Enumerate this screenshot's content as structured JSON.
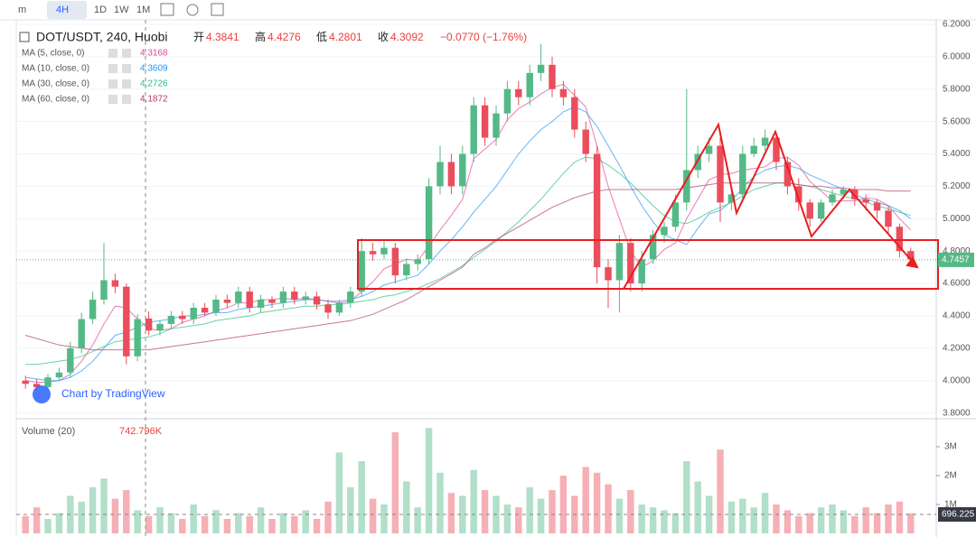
{
  "toolbar": {
    "items": [
      "m",
      "4H",
      "1D",
      "1W",
      "1M"
    ]
  },
  "chart_data": {
    "type": "candlestick",
    "title": "DOT/USDT, 240, Huobi",
    "ohlc_legend": [
      {
        "label": "开",
        "value": "4.3841"
      },
      {
        "label": "高",
        "value": "4.4276"
      },
      {
        "label": "低",
        "value": "4.2801"
      },
      {
        "label": "收",
        "value": "4.3092"
      }
    ],
    "change": "−0.0770 (−1.76%)",
    "up_color": "#53b987",
    "down_color": "#eb4d5c",
    "open": [
      4.0,
      3.98,
      3.96,
      4.02,
      4.05,
      4.2,
      4.38,
      4.5,
      4.62,
      4.58,
      4.15,
      4.3841,
      4.3092,
      4.35,
      4.4,
      4.38,
      4.45,
      4.42,
      4.5,
      4.48,
      4.55,
      4.45,
      4.5,
      4.48,
      4.55,
      4.5,
      4.52,
      4.47,
      4.42,
      4.48,
      4.55,
      4.8,
      4.78,
      4.82,
      4.65,
      4.72,
      4.75,
      5.2,
      5.35,
      5.2,
      5.4,
      5.7,
      5.5,
      5.65,
      5.8,
      5.75,
      5.9,
      5.95,
      5.8,
      5.75,
      5.55,
      5.4,
      4.7,
      4.62,
      4.85,
      4.6,
      4.75,
      4.9,
      4.95,
      5.1,
      5.3,
      5.4,
      5.45,
      5.1,
      5.15,
      5.4,
      5.45,
      5.5,
      5.35,
      5.2,
      5.1,
      5.0,
      5.1,
      5.15,
      5.18,
      5.12,
      5.1,
      5.05,
      4.95,
      4.8
    ],
    "high": [
      4.03,
      4.01,
      4.04,
      4.08,
      4.24,
      4.42,
      4.55,
      4.85,
      4.66,
      4.6,
      4.41,
      4.4276,
      4.37,
      4.43,
      4.43,
      4.48,
      4.48,
      4.53,
      4.53,
      4.58,
      4.58,
      4.53,
      4.52,
      4.58,
      4.58,
      4.55,
      4.55,
      4.5,
      4.5,
      4.58,
      4.88,
      4.85,
      4.86,
      4.85,
      4.75,
      4.78,
      5.25,
      5.45,
      5.4,
      5.45,
      5.75,
      5.75,
      5.7,
      5.85,
      5.85,
      5.95,
      6.08,
      6.0,
      5.85,
      5.8,
      5.6,
      5.45,
      4.75,
      4.9,
      4.88,
      4.8,
      4.93,
      4.98,
      5.15,
      5.8,
      5.45,
      5.5,
      5.5,
      5.2,
      5.45,
      5.5,
      5.55,
      5.52,
      5.38,
      5.25,
      5.12,
      5.12,
      5.18,
      5.2,
      5.2,
      5.15,
      5.12,
      5.08,
      4.97,
      4.82
    ],
    "low": [
      3.95,
      3.94,
      3.94,
      4.0,
      4.02,
      4.17,
      4.35,
      4.47,
      4.54,
      4.1,
      4.12,
      4.2801,
      4.28,
      4.32,
      4.35,
      4.35,
      4.4,
      4.4,
      4.45,
      4.45,
      4.42,
      4.42,
      4.45,
      4.45,
      4.47,
      4.47,
      4.44,
      4.38,
      4.4,
      4.45,
      4.52,
      4.74,
      4.75,
      4.6,
      4.62,
      4.68,
      4.72,
      5.15,
      5.15,
      5.15,
      5.35,
      5.45,
      5.45,
      5.6,
      5.7,
      5.7,
      5.85,
      5.75,
      5.7,
      5.5,
      5.35,
      4.6,
      4.45,
      4.42,
      4.55,
      4.55,
      4.72,
      4.85,
      4.92,
      5.05,
      5.25,
      5.35,
      4.98,
      5.05,
      5.1,
      5.38,
      5.42,
      5.3,
      5.15,
      5.05,
      4.95,
      4.98,
      5.08,
      5.12,
      5.08,
      5.05,
      5.0,
      4.9,
      4.76,
      4.72
    ],
    "close": [
      3.98,
      3.96,
      4.02,
      4.05,
      4.2,
      4.38,
      4.5,
      4.62,
      4.58,
      4.15,
      4.38,
      4.3092,
      4.35,
      4.4,
      4.38,
      4.45,
      4.42,
      4.5,
      4.48,
      4.55,
      4.45,
      4.5,
      4.48,
      4.55,
      4.5,
      4.52,
      4.47,
      4.42,
      4.48,
      4.55,
      4.8,
      4.78,
      4.82,
      4.65,
      4.72,
      4.75,
      5.2,
      5.35,
      5.2,
      5.4,
      5.7,
      5.5,
      5.65,
      5.8,
      5.75,
      5.9,
      5.95,
      5.8,
      5.75,
      5.55,
      5.4,
      4.7,
      4.62,
      4.85,
      4.6,
      4.75,
      4.9,
      4.95,
      5.1,
      5.3,
      5.4,
      5.45,
      5.1,
      5.15,
      5.4,
      5.45,
      5.5,
      5.35,
      5.2,
      5.1,
      5.0,
      5.1,
      5.15,
      5.18,
      5.12,
      5.1,
      5.05,
      4.95,
      4.8,
      4.75
    ],
    "ylim": [
      3.77,
      6.25
    ],
    "yticks": [
      {
        "value": 6.2,
        "label": "6.2000"
      },
      {
        "value": 6.0,
        "label": "6.0000"
      },
      {
        "value": 5.8,
        "label": "5.8000"
      },
      {
        "value": 5.6,
        "label": "5.6000"
      },
      {
        "value": 5.4,
        "label": "5.4000"
      },
      {
        "value": 5.2,
        "label": "5.2000"
      },
      {
        "value": 5.0,
        "label": "5.0000"
      },
      {
        "value": 4.8,
        "label": "4.8000"
      },
      {
        "value": 4.6,
        "label": "4.6000"
      },
      {
        "value": 4.4,
        "label": "4.4000"
      },
      {
        "value": 4.2,
        "label": "4.2000"
      },
      {
        "value": 4.0,
        "label": "4.0000"
      },
      {
        "value": 3.8,
        "label": "3.8000"
      }
    ],
    "last_price": {
      "value": 4.7457,
      "label": "4.7457"
    },
    "series": [
      {
        "name": "MA (5, close, 0)",
        "legend_value": "4.3168",
        "color": "#e0459a",
        "values": [
          4.0,
          3.99,
          3.99,
          4.0,
          4.04,
          4.12,
          4.22,
          4.35,
          4.46,
          4.45,
          4.38,
          4.32,
          4.31,
          4.32,
          4.36,
          4.38,
          4.4,
          4.43,
          4.45,
          4.48,
          4.48,
          4.5,
          4.5,
          4.51,
          4.5,
          4.51,
          4.5,
          4.49,
          4.48,
          4.49,
          4.55,
          4.61,
          4.69,
          4.72,
          4.75,
          4.74,
          4.83,
          4.93,
          5.02,
          5.12,
          5.37,
          5.43,
          5.49,
          5.61,
          5.68,
          5.72,
          5.77,
          5.81,
          5.83,
          5.76,
          5.69,
          5.45,
          5.2,
          5.0,
          4.8,
          4.7,
          4.74,
          4.81,
          4.85,
          5.0,
          5.12,
          5.24,
          5.27,
          5.28,
          5.3,
          5.31,
          5.32,
          5.37,
          5.38,
          5.33,
          5.23,
          5.17,
          5.11,
          5.11,
          5.11,
          5.13,
          5.12,
          5.08,
          5.0,
          4.93
        ]
      },
      {
        "name": "MA (10, close, 0)",
        "legend_value": "4.3609",
        "color": "#2196f3",
        "values": [
          4.02,
          4.01,
          4.0,
          4.0,
          4.02,
          4.06,
          4.12,
          4.2,
          4.28,
          4.3,
          4.33,
          4.36,
          4.37,
          4.38,
          4.4,
          4.4,
          4.41,
          4.42,
          4.42,
          4.44,
          4.45,
          4.46,
          4.47,
          4.48,
          4.49,
          4.5,
          4.5,
          4.49,
          4.49,
          4.5,
          4.52,
          4.55,
          4.59,
          4.61,
          4.63,
          4.65,
          4.72,
          4.8,
          4.87,
          4.95,
          5.04,
          5.12,
          5.2,
          5.3,
          5.4,
          5.48,
          5.55,
          5.6,
          5.66,
          5.69,
          5.66,
          5.57,
          5.45,
          5.33,
          5.2,
          5.08,
          4.98,
          4.9,
          4.87,
          4.84,
          4.94,
          5.03,
          5.05,
          5.11,
          5.19,
          5.26,
          5.3,
          5.32,
          5.33,
          5.31,
          5.27,
          5.24,
          5.21,
          5.18,
          5.15,
          5.12,
          5.1,
          5.08,
          5.05,
          5.0
        ]
      },
      {
        "name": "MA (30, close, 0)",
        "legend_value": "4.2726",
        "color": "#26c281",
        "values": [
          4.1,
          4.1,
          4.11,
          4.12,
          4.13,
          4.15,
          4.18,
          4.21,
          4.24,
          4.25,
          4.26,
          4.27,
          4.29,
          4.32,
          4.33,
          4.34,
          4.35,
          4.37,
          4.38,
          4.39,
          4.4,
          4.42,
          4.43,
          4.44,
          4.45,
          4.46,
          4.46,
          4.47,
          4.47,
          4.48,
          4.49,
          4.5,
          4.52,
          4.53,
          4.55,
          4.57,
          4.6,
          4.63,
          4.67,
          4.71,
          4.76,
          4.81,
          4.86,
          4.92,
          4.98,
          5.05,
          5.12,
          5.2,
          5.28,
          5.35,
          5.38,
          5.37,
          5.33,
          5.28,
          5.22,
          5.15,
          5.08,
          5.02,
          4.98,
          4.97,
          5.0,
          5.04,
          5.07,
          5.1,
          5.14,
          5.18,
          5.2,
          5.22,
          5.22,
          5.21,
          5.2,
          5.18,
          5.16,
          5.14,
          5.12,
          5.1,
          5.08,
          5.06,
          5.04,
          5.02
        ]
      },
      {
        "name": "MA (60, close, 0)",
        "legend_value": "4.1872",
        "color": "#b03a6e",
        "values": [
          4.28,
          4.26,
          4.24,
          4.22,
          4.21,
          4.2,
          4.19,
          4.19,
          4.19,
          4.19,
          4.19,
          4.19,
          4.2,
          4.21,
          4.22,
          4.23,
          4.24,
          4.25,
          4.26,
          4.27,
          4.28,
          4.29,
          4.3,
          4.31,
          4.32,
          4.33,
          4.34,
          4.35,
          4.36,
          4.37,
          4.39,
          4.41,
          4.44,
          4.47,
          4.5,
          4.54,
          4.58,
          4.62,
          4.66,
          4.7,
          4.78,
          4.82,
          4.87,
          4.91,
          4.95,
          4.99,
          5.03,
          5.07,
          5.1,
          5.13,
          5.15,
          5.17,
          5.18,
          5.18,
          5.18,
          5.18,
          5.18,
          5.18,
          5.18,
          5.19,
          5.2,
          5.21,
          5.22,
          5.22,
          5.22,
          5.22,
          5.22,
          5.22,
          5.22,
          5.21,
          5.2,
          5.2,
          5.19,
          5.19,
          5.18,
          5.18,
          5.18,
          5.17,
          5.17,
          5.17
        ]
      }
    ],
    "volume": {
      "name": "Volume (20)",
      "legend_value": "742.796K",
      "badge": "696.225",
      "values": [
        600000,
        900000,
        500000,
        700000,
        1300000,
        1100000,
        1600000,
        1900000,
        1200000,
        1500000,
        800000,
        600000,
        900000,
        700000,
        500000,
        1000000,
        600000,
        800000,
        500000,
        700000,
        600000,
        900000,
        500000,
        700000,
        600000,
        800000,
        500000,
        1100000,
        2800000,
        1600000,
        2500000,
        1200000,
        1000000,
        3500000,
        1800000,
        900000,
        3650000,
        2100000,
        1400000,
        1300000,
        2200000,
        1500000,
        1300000,
        1000000,
        900000,
        1600000,
        1200000,
        1500000,
        2000000,
        1300000,
        2300000,
        2100000,
        1700000,
        1200000,
        1500000,
        1000000,
        900000,
        800000,
        700000,
        2500000,
        1800000,
        1300000,
        2900000,
        1100000,
        1200000,
        900000,
        1400000,
        1000000,
        800000,
        600000,
        700000,
        900000,
        1000000,
        800000,
        600000,
        900000,
        700000,
        1000000,
        1100000,
        696225
      ],
      "ylim": [
        0,
        3875000
      ],
      "yticks": [
        {
          "value": 3000000,
          "label": "3M"
        },
        {
          "value": 2000000,
          "label": "2M"
        },
        {
          "value": 1000000,
          "label": "1M"
        }
      ]
    },
    "watermark": "Chart by TradingView"
  }
}
